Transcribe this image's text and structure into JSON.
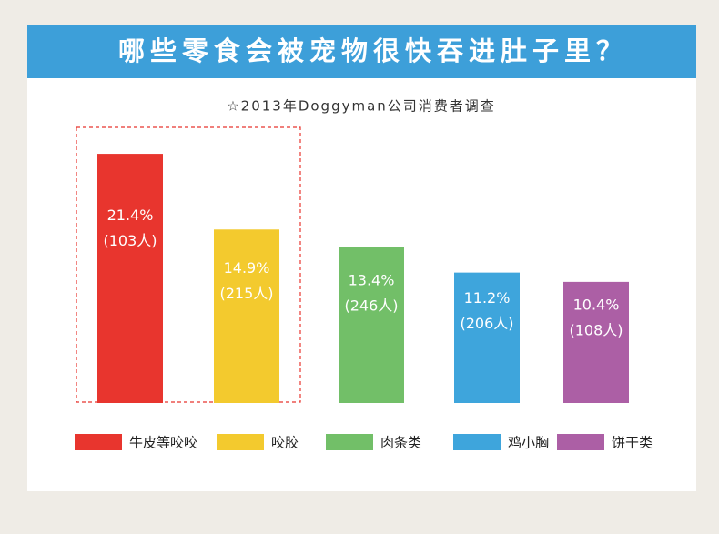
{
  "chart_data": {
    "type": "bar",
    "title": "哪些零食会被宠物很快吞进肚子里？",
    "subtitle": "☆2013年Doggyman公司消费者调查",
    "categories": [
      "牛皮等咬咬",
      "咬胶",
      "肉条类",
      "鸡小胸",
      "饼干类"
    ],
    "values": [
      21.4,
      14.9,
      13.4,
      11.2,
      10.4
    ],
    "value_labels": [
      "21.4%",
      "14.9%",
      "13.4%",
      "11.2%",
      "10.4%"
    ],
    "count_labels": [
      "(103人)",
      "(215人)",
      "(246人)",
      "(206人)",
      "(108人)"
    ],
    "colors": [
      "#e8352e",
      "#f3ca2e",
      "#72bf68",
      "#3ea5dc",
      "#ac5fa5"
    ]
  }
}
